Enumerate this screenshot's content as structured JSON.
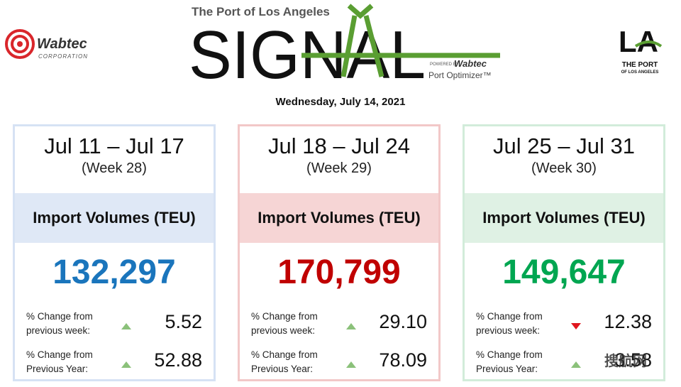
{
  "header": {
    "left_logo": {
      "name": "Wabtec",
      "sub": "CORPORATION"
    },
    "kicker": "The Port of Los Angeles",
    "title": "SIGNAL",
    "powered_by": "POWERED BY",
    "powered_brand": "Wabtec",
    "product": "Port Optimizer™",
    "right_logo": {
      "mark": "LA",
      "name": "THE PORT",
      "sub": "OF LOS ANGELES"
    },
    "date": "Wednesday, July 14, 2021"
  },
  "cards": [
    {
      "range": "Jul 11 – Jul 17",
      "week": "(Week 28)",
      "metric": "Import Volumes (TEU)",
      "value": "132,297",
      "theme": {
        "accent": "#1a75bc",
        "band": "#dfe8f6",
        "border": "#d6e2f4"
      },
      "changes": [
        {
          "label": "% Change from previous week:",
          "trend": "up",
          "value": "5.52"
        },
        {
          "label": "% Change from Previous Year:",
          "trend": "up",
          "value": "52.88"
        }
      ]
    },
    {
      "range": "Jul 18 – Jul 24",
      "week": "(Week 29)",
      "metric": "Import Volumes (TEU)",
      "value": "170,799",
      "theme": {
        "accent": "#c00000",
        "band": "#f6d5d5",
        "border": "#f2c8c8"
      },
      "changes": [
        {
          "label": "% Change from previous week:",
          "trend": "up",
          "value": "29.10"
        },
        {
          "label": "% Change from Previous Year:",
          "trend": "up",
          "value": "78.09"
        }
      ]
    },
    {
      "range": "Jul 25 – Jul 31",
      "week": "(Week 30)",
      "metric": "Import Volumes (TEU)",
      "value": "149,647",
      "theme": {
        "accent": "#00a651",
        "band": "#dff1e4",
        "border": "#d2ecda"
      },
      "changes": [
        {
          "label": "% Change from previous week:",
          "trend": "down",
          "value": "12.38"
        },
        {
          "label": "% Change from Previous Year:",
          "trend": "up",
          "value": "3.58"
        }
      ]
    }
  ],
  "watermark": "搜航网"
}
